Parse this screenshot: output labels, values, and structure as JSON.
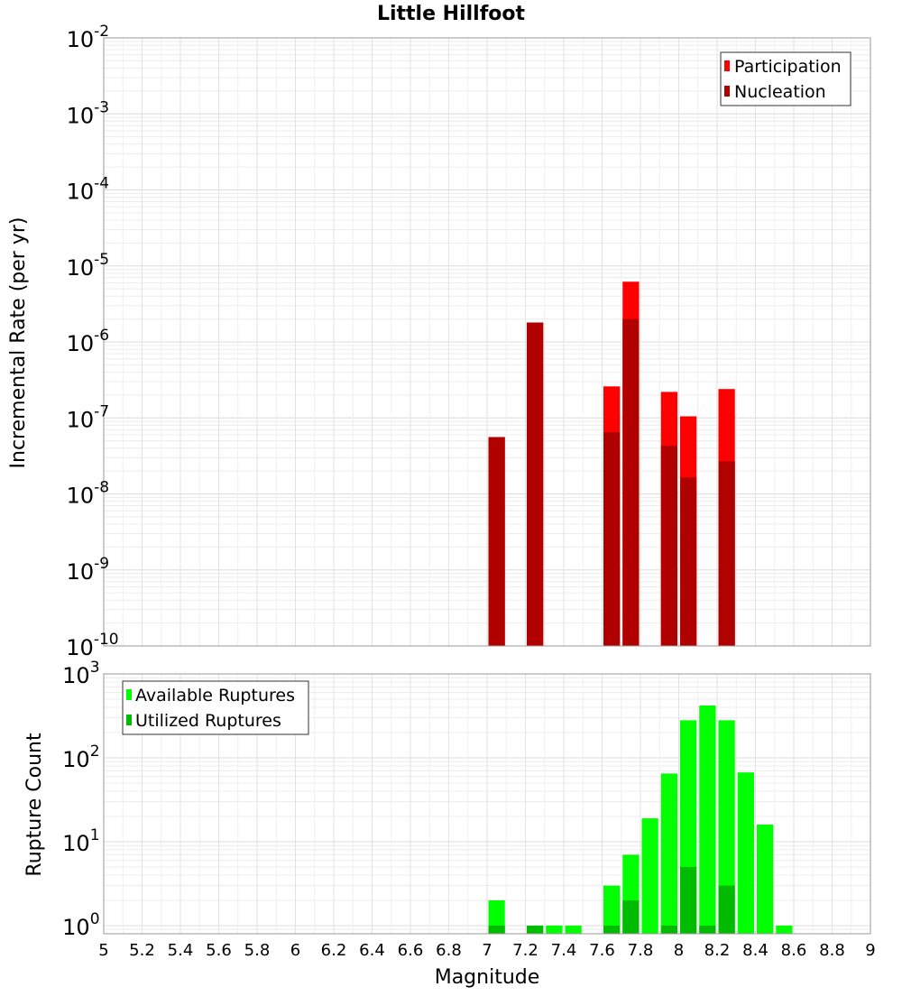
{
  "chart_data": [
    {
      "type": "bar",
      "title": "Little Hillfoot",
      "xlabel": "",
      "ylabel": "Incremental Rate (per yr)",
      "y_scale": "log",
      "ylim": [
        1e-10,
        0.01
      ],
      "xlim": [
        5,
        9
      ],
      "grid": true,
      "legend_position": "top-right",
      "y_tick_labels": [
        {
          "exp": -2,
          "label_base": "10",
          "label_exp": "-2"
        },
        {
          "exp": -3,
          "label_base": "10",
          "label_exp": "-3"
        },
        {
          "exp": -4,
          "label_base": "10",
          "label_exp": "-4"
        },
        {
          "exp": -5,
          "label_base": "10",
          "label_exp": "-5"
        },
        {
          "exp": -6,
          "label_base": "10",
          "label_exp": "-6"
        },
        {
          "exp": -7,
          "label_base": "10",
          "label_exp": "-7"
        },
        {
          "exp": -8,
          "label_base": "10",
          "label_exp": "-8"
        },
        {
          "exp": -9,
          "label_base": "10",
          "label_exp": "-9"
        },
        {
          "exp": -10,
          "label_base": "10",
          "label_exp": "-10"
        }
      ],
      "series": [
        {
          "name": "Participation",
          "color": "#ff0000",
          "x": [
            7.05,
            7.25,
            7.65,
            7.75,
            7.95,
            8.05,
            8.25
          ],
          "values": [
            5.6e-08,
            1.8e-06,
            2.6e-07,
            6.2e-06,
            2.2e-07,
            1.05e-07,
            2.4e-07
          ]
        },
        {
          "name": "Nucleation",
          "color": "#b00000",
          "x": [
            7.05,
            7.25,
            7.65,
            7.75,
            7.95,
            8.05,
            8.25
          ],
          "values": [
            5.6e-08,
            1.8e-06,
            6.5e-08,
            2e-06,
            4.3e-08,
            1.65e-08,
            2.7e-08
          ]
        }
      ]
    },
    {
      "type": "bar",
      "xlabel": "Magnitude",
      "ylabel": "Rupture Count",
      "y_scale": "log",
      "ylim": [
        0.8,
        1000
      ],
      "xlim": [
        5,
        9
      ],
      "grid": true,
      "legend_position": "top-left",
      "x_tick_labels": [
        "5",
        "5.2",
        "5.4",
        "5.6",
        "5.8",
        "6",
        "6.2",
        "6.4",
        "6.6",
        "6.8",
        "7",
        "7.2",
        "7.4",
        "7.6",
        "7.8",
        "8",
        "8.2",
        "8.4",
        "8.6",
        "8.8",
        "9"
      ],
      "y_tick_labels": [
        {
          "exp": 3,
          "label_base": "10",
          "label_exp": "3"
        },
        {
          "exp": 2,
          "label_base": "10",
          "label_exp": "2"
        },
        {
          "exp": 1,
          "label_base": "10",
          "label_exp": "1"
        },
        {
          "exp": 0,
          "label_base": "10",
          "label_exp": "0"
        }
      ],
      "series": [
        {
          "name": "Available Ruptures",
          "color": "#00ff00",
          "x": [
            7.05,
            7.25,
            7.35,
            7.45,
            7.65,
            7.75,
            7.85,
            7.95,
            8.05,
            8.15,
            8.25,
            8.35,
            8.45,
            8.55
          ],
          "values": [
            2,
            1,
            1,
            1,
            3,
            7,
            19,
            65,
            280,
            420,
            280,
            67,
            16,
            1
          ]
        },
        {
          "name": "Utilized Ruptures",
          "color": "#00bb00",
          "x": [
            7.05,
            7.25,
            7.65,
            7.75,
            7.95,
            8.05,
            8.15,
            8.25
          ],
          "values": [
            1,
            1,
            1,
            2,
            1,
            5,
            1,
            3
          ]
        }
      ]
    }
  ]
}
